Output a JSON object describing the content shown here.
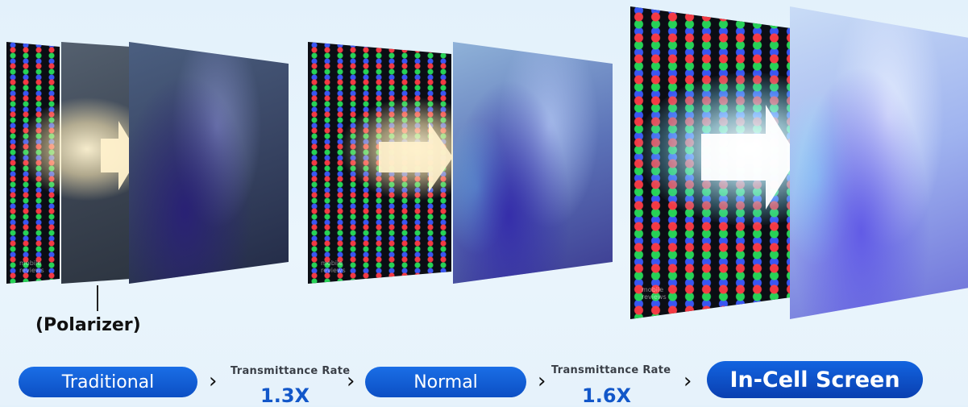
{
  "callout": {
    "label": "(Polarizer)"
  },
  "watermarks": {
    "text": "mobile reviews"
  },
  "stages": [
    {
      "label": "Traditional"
    },
    {
      "label": "Normal"
    },
    {
      "label": "In-Cell Screen"
    }
  ],
  "transitions": [
    {
      "caption": "Transmittance Rate",
      "value": "1.3X"
    },
    {
      "caption": "Transmittance Rate",
      "value": "1.6X"
    }
  ],
  "colors": {
    "pill_blue": "#0c4fc4",
    "rate_value": "#1257c9",
    "background": "#e6f2fb"
  },
  "icons": {
    "arrow": "chevron-right-icon",
    "light": "light-arrow-icon"
  }
}
